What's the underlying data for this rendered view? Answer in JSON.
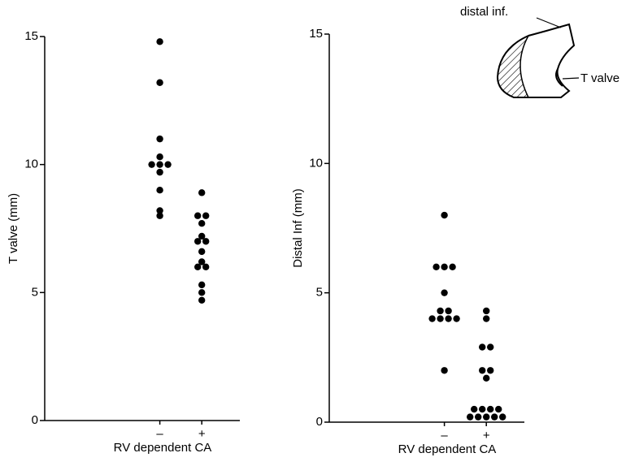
{
  "chart_data": [
    {
      "type": "dot",
      "ylabel": "T valve (mm)",
      "xlabel": "RV dependent CA",
      "categories": [
        "–",
        "+"
      ],
      "color": "#000000",
      "values": [
        [
          14.8,
          13.2,
          11.0,
          10.3,
          10.0,
          10.0,
          10.0,
          9.7,
          9.0,
          8.2,
          8.0
        ],
        [
          8.9,
          8.0,
          8.0,
          7.7,
          7.0,
          7.0,
          7.2,
          6.6,
          6.2,
          6.0,
          6.0,
          5.3,
          5.0,
          4.7
        ]
      ],
      "ylim": [
        0,
        15
      ],
      "yticks": [
        0,
        5,
        10,
        15
      ]
    },
    {
      "type": "dot",
      "ylabel": "Distal Inf (mm)",
      "xlabel": "RV dependent CA",
      "categories": [
        "–",
        "+"
      ],
      "color": "#000000",
      "values": [
        [
          8.0,
          6.0,
          6.0,
          6.0,
          5.0,
          4.3,
          4.3,
          4.0,
          4.0,
          4.0,
          4.0,
          2.0
        ],
        [
          4.3,
          4.0,
          2.9,
          2.9,
          2.0,
          2.0,
          1.7,
          0.5,
          0.5,
          0.5,
          0.5,
          0.2,
          0.2,
          0.2,
          0.2,
          0.2
        ]
      ],
      "ylim": [
        0,
        15
      ],
      "yticks": [
        0,
        5,
        10,
        15
      ],
      "annotations": [
        "distal inf.",
        "T valve"
      ]
    }
  ]
}
